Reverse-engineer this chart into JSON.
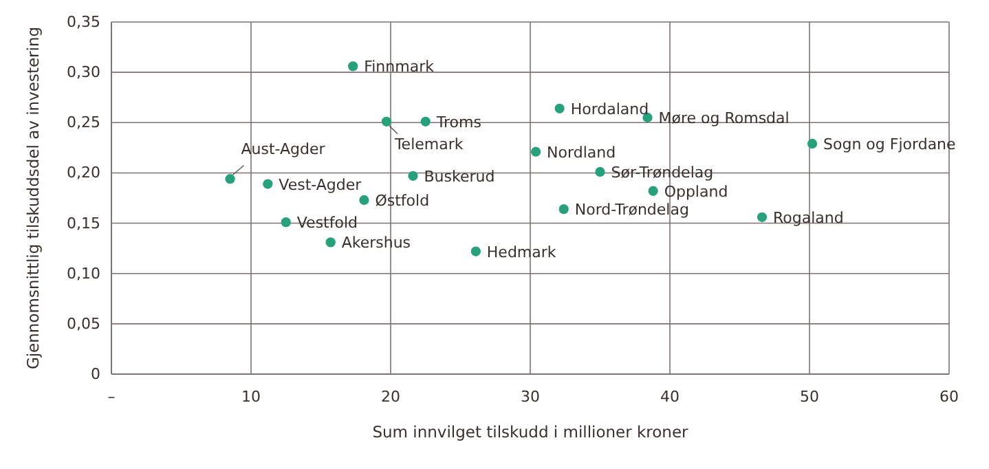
{
  "chart_data": {
    "type": "scatter",
    "xlabel": "Sum innvilget tilskudd i millioner kroner",
    "ylabel": "Gjennomsnittlig tilskuddsdel av investering",
    "x": [
      17.3,
      19.7,
      22.5,
      8.5,
      11.2,
      21.6,
      18.1,
      12.5,
      15.7,
      26.1,
      32.1,
      38.4,
      50.2,
      30.4,
      35.0,
      38.8,
      32.4,
      46.6
    ],
    "series": [
      {
        "color": "#26a17b",
        "values": [
          0.306,
          0.251,
          0.251,
          0.194,
          0.189,
          0.197,
          0.173,
          0.151,
          0.131,
          0.122,
          0.264,
          0.255,
          0.229,
          0.221,
          0.201,
          0.182,
          0.164,
          0.156
        ]
      }
    ],
    "annotations": [
      {
        "text": "Finnmark",
        "x": 17.3,
        "y": 0.306
      },
      {
        "text": "Telemark",
        "x": 19.7,
        "y": 0.251
      },
      {
        "text": "Troms",
        "x": 22.5,
        "y": 0.251
      },
      {
        "text": "Aust-Agder",
        "x": 8.5,
        "y": 0.194
      },
      {
        "text": "Vest-Agder",
        "x": 11.2,
        "y": 0.189
      },
      {
        "text": "Buskerud",
        "x": 21.6,
        "y": 0.197
      },
      {
        "text": "Østfold",
        "x": 18.1,
        "y": 0.173
      },
      {
        "text": "Vestfold",
        "x": 12.5,
        "y": 0.151
      },
      {
        "text": "Akershus",
        "x": 15.7,
        "y": 0.131
      },
      {
        "text": "Hedmark",
        "x": 26.1,
        "y": 0.122
      },
      {
        "text": "Hordaland",
        "x": 32.1,
        "y": 0.264
      },
      {
        "text": "Møre og Romsdal",
        "x": 38.4,
        "y": 0.255
      },
      {
        "text": "Sogn og Fjordane",
        "x": 50.2,
        "y": 0.229
      },
      {
        "text": "Nordland",
        "x": 30.4,
        "y": 0.221
      },
      {
        "text": "Sør-Trøndelag",
        "x": 35.0,
        "y": 0.201
      },
      {
        "text": "Oppland",
        "x": 38.8,
        "y": 0.182
      },
      {
        "text": "Nord-Trøndelag",
        "x": 32.4,
        "y": 0.164
      },
      {
        "text": "Rogaland",
        "x": 46.6,
        "y": 0.156
      }
    ],
    "xlim": [
      0,
      60
    ],
    "xticks": [
      {
        "value": 0,
        "label": "–"
      },
      10,
      20,
      30,
      40,
      50,
      60
    ],
    "ylim": [
      0,
      0.35
    ],
    "yticks": [
      {
        "value": 0,
        "label": "0"
      },
      {
        "value": 0.05,
        "label": "0,05"
      },
      {
        "value": 0.1,
        "label": "0,10"
      },
      {
        "value": 0.15,
        "label": "0,15"
      },
      {
        "value": 0.2,
        "label": "0,20"
      },
      {
        "value": 0.25,
        "label": "0,25"
      },
      {
        "value": 0.3,
        "label": "0,30"
      },
      {
        "value": 0.35,
        "label": "0,35"
      }
    ],
    "grid": true,
    "marker": "circle"
  }
}
